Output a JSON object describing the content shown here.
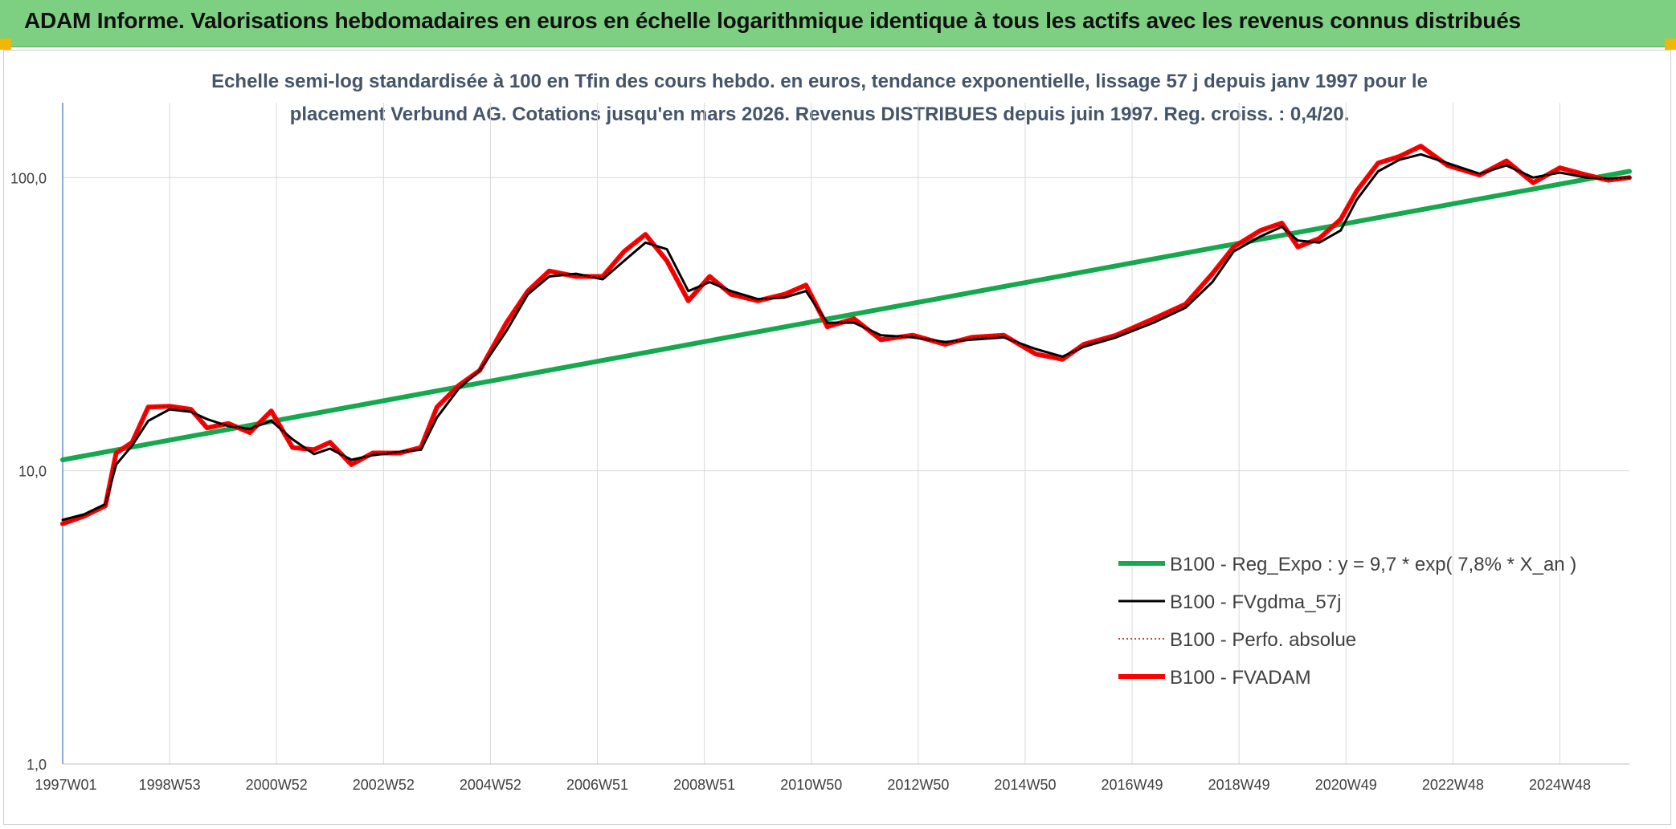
{
  "header": {
    "title": "ADAM Informe. Valorisations hebdomadaires en euros en échelle logarithmique identique à tous les actifs avec les revenus connus distribués"
  },
  "chart_data": {
    "type": "line",
    "title": "",
    "subtitle_line1": "Echelle semi-log standardisée à 100 en Tfin des cours hebdo. en euros, tendance exponentielle, lissage 57 j depuis janv 1997 pour le",
    "subtitle_line2": "placement Verbund AG. Cotations jusqu'en mars 2026. Revenus DISTRIBUES depuis juin 1997. Reg. croiss. : 0,4/20.",
    "xlabel": "",
    "ylabel": "",
    "y_scale": "log",
    "ylim": [
      1,
      180
    ],
    "xlim": [
      1997.0,
      2026.3
    ],
    "grid": true,
    "legend_position": "bottom-right",
    "y_ticks": [
      {
        "value": 1,
        "label": "1,0"
      },
      {
        "value": 10,
        "label": "10,0"
      },
      {
        "value": 100,
        "label": "100,0"
      }
    ],
    "x_ticks": [
      {
        "value": 1997.0,
        "label": "1997W01"
      },
      {
        "value": 1999.0,
        "label": "1998W53"
      },
      {
        "value": 2001.0,
        "label": "2000W52"
      },
      {
        "value": 2003.0,
        "label": "2002W52"
      },
      {
        "value": 2005.0,
        "label": "2004W52"
      },
      {
        "value": 2007.0,
        "label": "2006W51"
      },
      {
        "value": 2009.0,
        "label": "2008W51"
      },
      {
        "value": 2011.0,
        "label": "2010W50"
      },
      {
        "value": 2013.0,
        "label": "2012W50"
      },
      {
        "value": 2015.0,
        "label": "2014W50"
      },
      {
        "value": 2017.0,
        "label": "2016W49"
      },
      {
        "value": 2019.0,
        "label": "2018W49"
      },
      {
        "value": 2021.0,
        "label": "2020W49"
      },
      {
        "value": 2023.0,
        "label": "2022W48"
      },
      {
        "value": 2025.0,
        "label": "2024W48"
      }
    ],
    "series": [
      {
        "name": "B100 - Reg_Expo : y = 9,7 * exp( 7,8% *  X_an )",
        "color": "#16a84e",
        "style": "solid-thick",
        "x": [
          1997.0,
          2026.3
        ],
        "y": [
          10.9,
          105
        ]
      },
      {
        "name": "B100 - FVgdma_57j",
        "color": "#000000",
        "style": "solid",
        "x": [
          1997.0,
          1997.4,
          1997.8,
          1998.0,
          1998.3,
          1998.6,
          1999.0,
          1999.4,
          1999.7,
          2000.1,
          2000.5,
          2000.9,
          2001.3,
          2001.7,
          2002.0,
          2002.4,
          2002.8,
          2003.3,
          2003.7,
          2004.0,
          2004.4,
          2004.8,
          2005.3,
          2005.7,
          2006.1,
          2006.6,
          2007.1,
          2007.5,
          2007.9,
          2008.3,
          2008.7,
          2009.1,
          2009.5,
          2010.0,
          2010.5,
          2010.9,
          2011.3,
          2011.8,
          2012.3,
          2012.9,
          2013.5,
          2014.0,
          2014.6,
          2015.2,
          2015.7,
          2016.1,
          2016.7,
          2017.4,
          2018.0,
          2018.5,
          2018.9,
          2019.4,
          2019.8,
          2020.1,
          2020.5,
          2020.9,
          2021.2,
          2021.6,
          2022.0,
          2022.4,
          2022.9,
          2023.5,
          2024.0,
          2024.5,
          2025.0,
          2025.5,
          2025.9,
          2026.3
        ],
        "y": [
          6.8,
          7.1,
          7.7,
          10.5,
          12.2,
          14.8,
          16.2,
          15.9,
          15.0,
          14.2,
          13.9,
          14.8,
          12.8,
          11.4,
          11.9,
          10.9,
          11.3,
          11.6,
          11.8,
          15.2,
          19.0,
          22.0,
          30.0,
          40.0,
          46.0,
          47.0,
          45.0,
          52.0,
          60.0,
          57.0,
          41.0,
          44.0,
          41.0,
          38.5,
          39.0,
          41.0,
          32.0,
          32.0,
          29.0,
          28.5,
          27.5,
          28.0,
          28.5,
          26.0,
          24.5,
          26.5,
          28.5,
          32.0,
          36.0,
          44.0,
          56.0,
          63.0,
          68.0,
          61.0,
          60.0,
          66.0,
          84.0,
          105.0,
          115.0,
          120.0,
          112.0,
          103.0,
          110.0,
          100.0,
          104.0,
          100.0,
          99.0,
          100.0
        ]
      },
      {
        "name": "B100 - Perfo. absolue",
        "color": "#c00000",
        "style": "dotted",
        "x": [
          1997.0,
          1997.4,
          1997.8,
          1998.0,
          1998.3,
          1998.6,
          1999.0,
          1999.4,
          1999.7,
          2000.1,
          2000.5,
          2000.9,
          2001.3,
          2001.7,
          2002.0,
          2002.4,
          2002.8,
          2003.3,
          2003.7,
          2004.0,
          2004.4,
          2004.8,
          2005.3,
          2005.7,
          2006.1,
          2006.6,
          2007.1,
          2007.5,
          2007.9,
          2008.3,
          2008.7,
          2009.1,
          2009.5,
          2010.0,
          2010.5,
          2010.9,
          2011.3,
          2011.8,
          2012.3,
          2012.9,
          2013.5,
          2014.0,
          2014.6,
          2015.2,
          2015.7,
          2016.1,
          2016.7,
          2017.4,
          2018.0,
          2018.5,
          2018.9,
          2019.4,
          2019.8,
          2020.1,
          2020.5,
          2020.9,
          2021.2,
          2021.6,
          2022.0,
          2022.4,
          2022.9,
          2023.5,
          2024.0,
          2024.5,
          2025.0,
          2025.5,
          2025.9,
          2026.3
        ],
        "y": [
          6.6,
          7.0,
          7.6,
          11.5,
          12.5,
          16.5,
          16.6,
          16.2,
          14.0,
          14.5,
          13.5,
          16.0,
          12.0,
          11.8,
          12.5,
          10.5,
          11.5,
          11.5,
          12.0,
          16.5,
          19.5,
          22.0,
          32.0,
          41.0,
          48.0,
          46.0,
          46.0,
          56.0,
          64.0,
          52.0,
          38.0,
          46.0,
          40.0,
          38.0,
          40.0,
          43.0,
          31.0,
          33.0,
          28.0,
          29.0,
          27.0,
          28.5,
          29.0,
          25.0,
          24.0,
          27.0,
          29.0,
          33.0,
          37.0,
          47.0,
          58.0,
          66.0,
          70.0,
          58.0,
          62.0,
          72.0,
          90.0,
          112.0,
          118.0,
          128.0,
          110.0,
          102.0,
          114.0,
          96.0,
          108.0,
          102.0,
          98.0,
          100.0
        ]
      },
      {
        "name": "B100 - FVADAM",
        "color": "#ff0000",
        "style": "solid-thick",
        "x": [
          1997.0,
          1997.4,
          1997.8,
          1998.0,
          1998.3,
          1998.6,
          1999.0,
          1999.4,
          1999.7,
          2000.1,
          2000.5,
          2000.9,
          2001.3,
          2001.7,
          2002.0,
          2002.4,
          2002.8,
          2003.3,
          2003.7,
          2004.0,
          2004.4,
          2004.8,
          2005.3,
          2005.7,
          2006.1,
          2006.6,
          2007.1,
          2007.5,
          2007.9,
          2008.3,
          2008.7,
          2009.1,
          2009.5,
          2010.0,
          2010.5,
          2010.9,
          2011.3,
          2011.8,
          2012.3,
          2012.9,
          2013.5,
          2014.0,
          2014.6,
          2015.2,
          2015.7,
          2016.1,
          2016.7,
          2017.4,
          2018.0,
          2018.5,
          2018.9,
          2019.4,
          2019.8,
          2020.1,
          2020.5,
          2020.9,
          2021.2,
          2021.6,
          2022.0,
          2022.4,
          2022.9,
          2023.5,
          2024.0,
          2024.5,
          2025.0,
          2025.5,
          2025.9,
          2026.3
        ],
        "y": [
          6.6,
          7.0,
          7.6,
          11.5,
          12.5,
          16.5,
          16.6,
          16.2,
          14.0,
          14.5,
          13.5,
          16.0,
          12.0,
          11.8,
          12.5,
          10.5,
          11.5,
          11.5,
          12.0,
          16.5,
          19.5,
          22.0,
          32.0,
          41.0,
          48.0,
          46.0,
          46.0,
          56.0,
          64.0,
          52.0,
          38.0,
          46.0,
          40.0,
          38.0,
          40.0,
          43.0,
          31.0,
          33.0,
          28.0,
          29.0,
          27.0,
          28.5,
          29.0,
          25.0,
          24.0,
          27.0,
          29.0,
          33.0,
          37.0,
          47.0,
          58.0,
          66.0,
          70.0,
          58.0,
          62.0,
          72.0,
          90.0,
          112.0,
          118.0,
          128.0,
          110.0,
          102.0,
          114.0,
          96.0,
          108.0,
          102.0,
          98.0,
          100.0
        ]
      }
    ]
  }
}
